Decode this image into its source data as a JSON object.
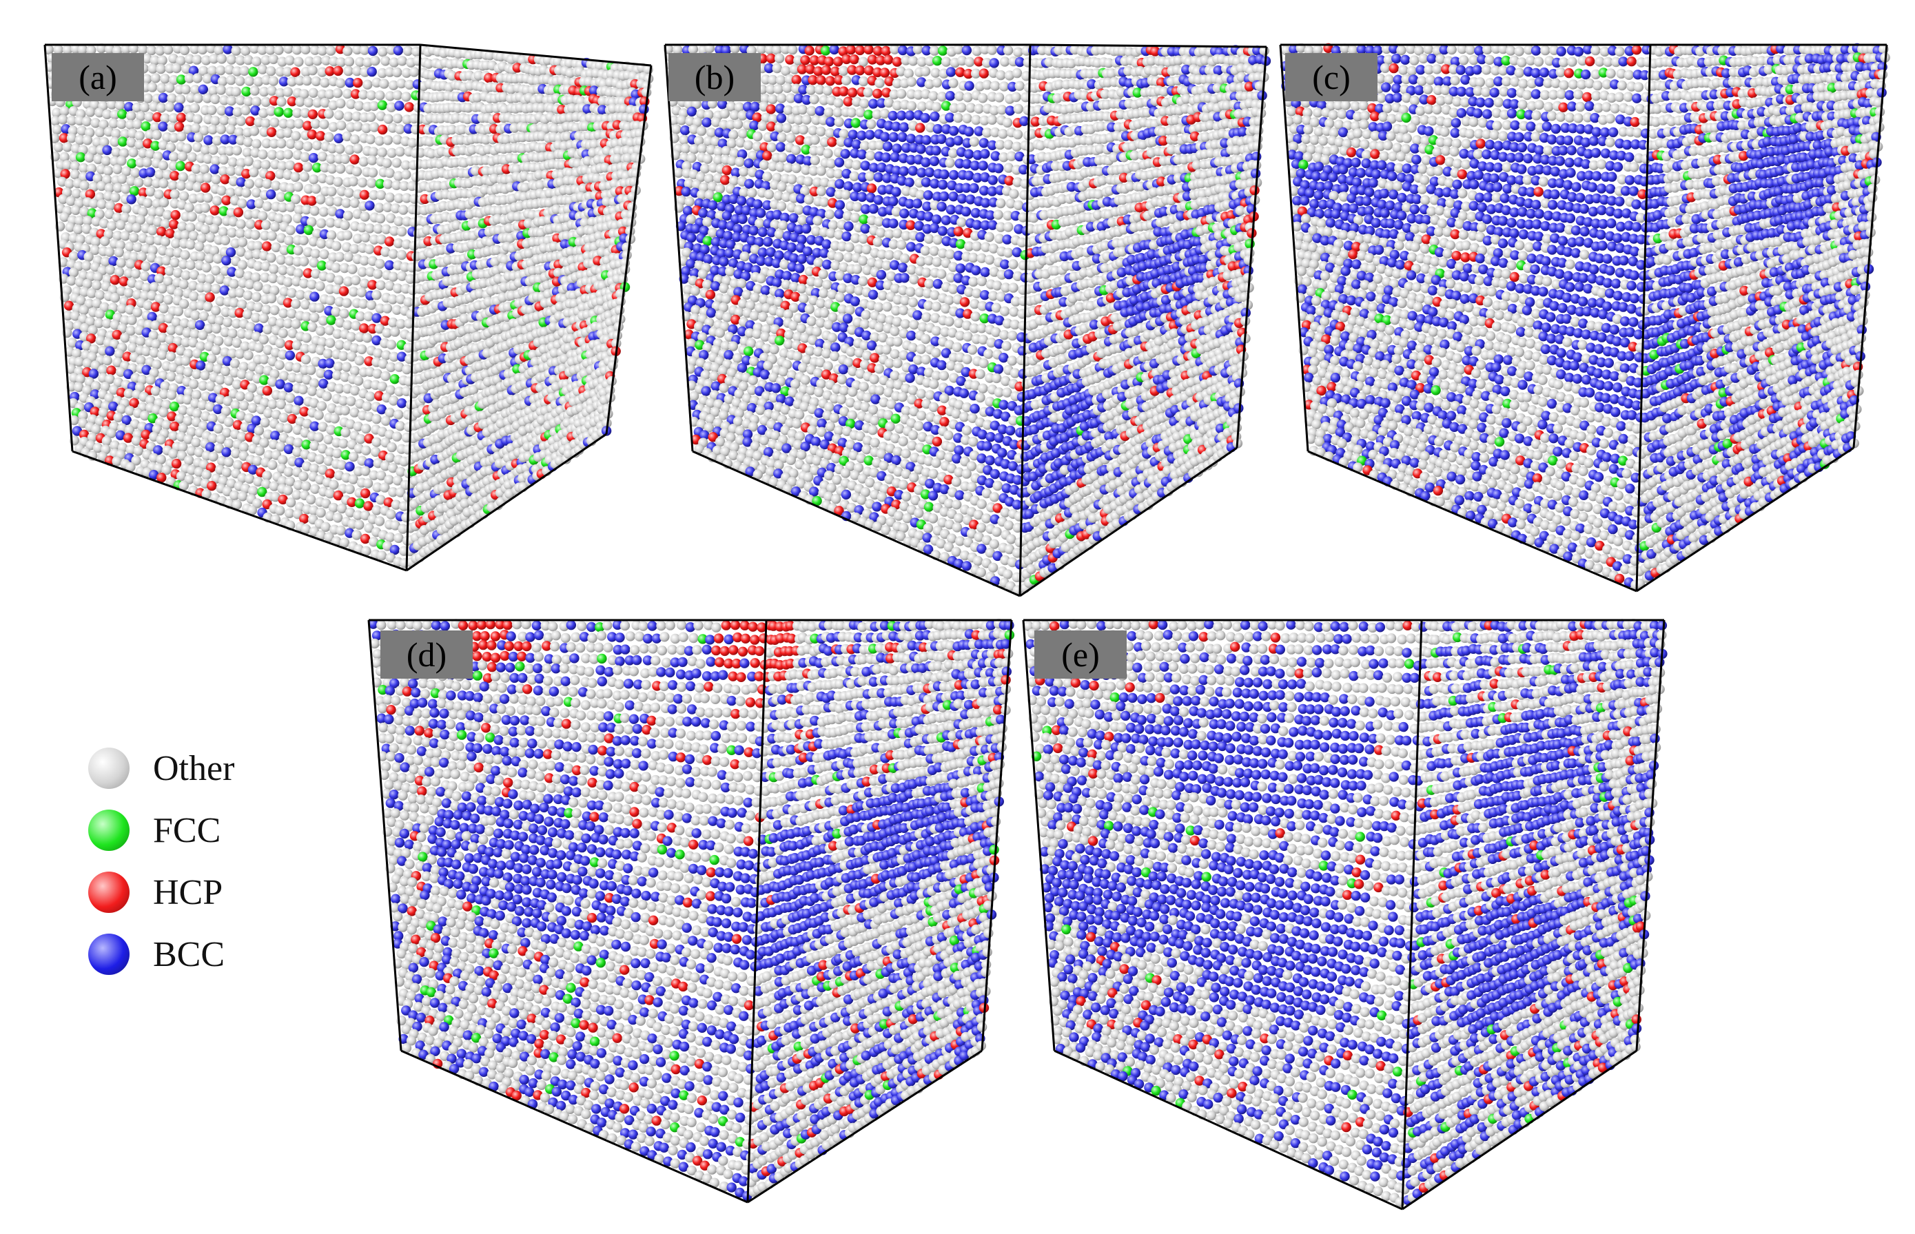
{
  "figure": {
    "panels": [
      {
        "id": "a",
        "label": "(a)"
      },
      {
        "id": "b",
        "label": "(b)"
      },
      {
        "id": "c",
        "label": "(c)"
      },
      {
        "id": "d",
        "label": "(d)"
      },
      {
        "id": "e",
        "label": "(e)"
      }
    ],
    "legend": {
      "items": [
        {
          "label": "Other",
          "color": "#d4d4d4",
          "icon": "gray-sphere-icon"
        },
        {
          "label": "FCC",
          "color": "#1fe41f",
          "icon": "green-sphere-icon"
        },
        {
          "label": "HCP",
          "color": "#f21d1d",
          "icon": "red-sphere-icon"
        },
        {
          "label": "BCC",
          "color": "#1e1ee6",
          "icon": "blue-sphere-icon"
        }
      ]
    }
  }
}
